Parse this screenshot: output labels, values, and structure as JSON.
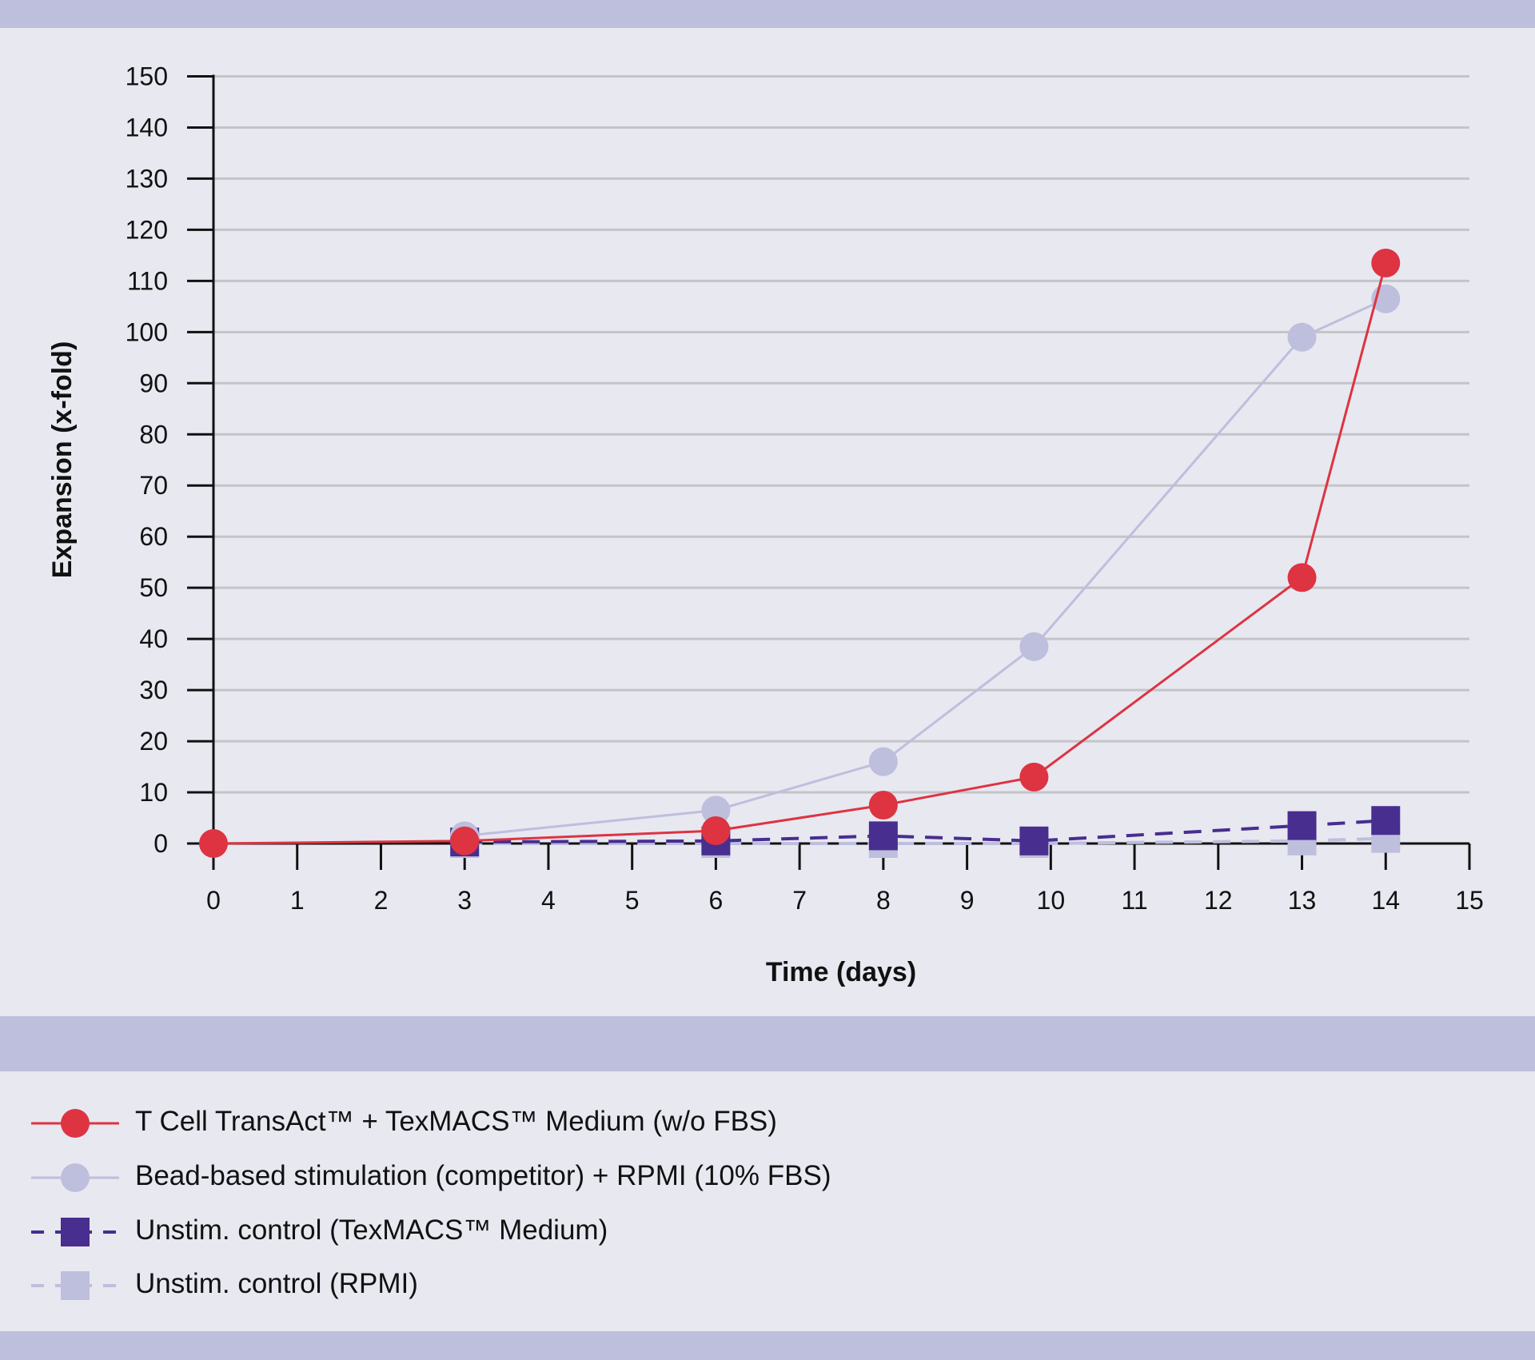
{
  "chart_data": {
    "type": "line",
    "title": "",
    "xlabel": "Time (days)",
    "ylabel": "Expansion (x-fold)",
    "xlim": [
      0,
      15
    ],
    "ylim": [
      0,
      150
    ],
    "xticks": [
      0,
      1,
      2,
      3,
      4,
      5,
      6,
      7,
      8,
      9,
      10,
      11,
      12,
      13,
      14,
      15
    ],
    "yticks": [
      0,
      10,
      20,
      30,
      40,
      50,
      60,
      70,
      80,
      90,
      100,
      110,
      120,
      130,
      140,
      150
    ],
    "grid": "horizontal",
    "legend_position": "bottom",
    "series": [
      {
        "name": "T Cell TransAct™ + TexMACS™ Medium (w/o FBS)",
        "color": "#de3341",
        "marker": "circle",
        "dash": false,
        "x": [
          0,
          3,
          6,
          8,
          9.8,
          13,
          14
        ],
        "y": [
          0,
          0.5,
          2.5,
          7.5,
          13,
          52,
          113.5
        ]
      },
      {
        "name": "Bead-based stimulation (competitor) + RPMI (10% FBS)",
        "color": "#bebedd",
        "marker": "circle",
        "dash": false,
        "x": [
          3,
          6,
          8,
          9.8,
          13,
          14
        ],
        "y": [
          1.5,
          6.5,
          16,
          38.5,
          99,
          106.5
        ]
      },
      {
        "name": "Unstim. control (TexMACS™ Medium)",
        "color": "#472e8f",
        "marker": "square",
        "dash": true,
        "x": [
          3,
          6,
          8,
          9.8,
          13,
          14
        ],
        "y": [
          0.3,
          0.5,
          1.5,
          0.5,
          3.5,
          4.5
        ]
      },
      {
        "name": "Unstim. control (RPMI)",
        "color": "#bebedd",
        "marker": "square",
        "dash": true,
        "x": [
          3,
          6,
          8,
          9.8,
          13,
          14
        ],
        "y": [
          0,
          0,
          0,
          0,
          0.5,
          1
        ]
      }
    ]
  }
}
